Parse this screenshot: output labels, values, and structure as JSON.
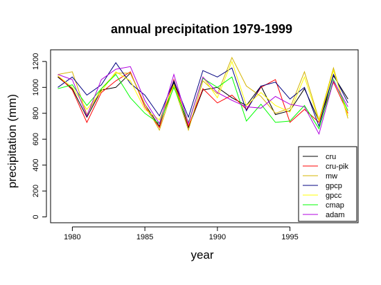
{
  "chart_data": {
    "type": "line",
    "title": "annual precipitation 1979-1999",
    "xlabel": "year",
    "ylabel": "precipitation (mm)",
    "xlim": [
      1978.5,
      1999.7
    ],
    "ylim": [
      -45,
      1290
    ],
    "x_ticks": [
      1980,
      1985,
      1990,
      1995
    ],
    "y_ticks": [
      0,
      200,
      400,
      600,
      800,
      1000,
      1200
    ],
    "grid": false,
    "legend_position": "bottom-right",
    "x": [
      1979,
      1980,
      1981,
      1982,
      1983,
      1984,
      1985,
      1986,
      1987,
      1988,
      1989,
      1990,
      1991,
      1992,
      1993,
      1994,
      1995,
      1996,
      1997,
      1998,
      1999
    ],
    "series": [
      {
        "name": "cru",
        "color": "#000000",
        "values": [
          1080,
          990,
          770,
          980,
          1000,
          1110,
          870,
          700,
          1040,
          690,
          980,
          1000,
          920,
          860,
          1010,
          790,
          820,
          990,
          740,
          1090,
          910
        ]
      },
      {
        "name": "cru-pik",
        "color": "#ff0000",
        "values": [
          1090,
          980,
          730,
          960,
          1050,
          1120,
          850,
          690,
          1060,
          700,
          990,
          880,
          940,
          830,
          1000,
          1060,
          730,
          830,
          730,
          1040,
          800
        ]
      },
      {
        "name": "mw",
        "color": "#d4b400",
        "values": [
          1100,
          1120,
          790,
          990,
          1110,
          1110,
          870,
          670,
          1010,
          670,
          1050,
          950,
          1230,
          1010,
          930,
          800,
          840,
          1120,
          750,
          1150,
          760
        ]
      },
      {
        "name": "gpcp",
        "color": "#000080",
        "values": [
          1000,
          1080,
          940,
          1020,
          1190,
          1030,
          940,
          780,
          1050,
          770,
          1130,
          1080,
          1150,
          820,
          1010,
          1040,
          910,
          1000,
          700,
          1100,
          880
        ]
      },
      {
        "name": "gpcc",
        "color": "#ffff00",
        "values": [
          1090,
          1000,
          830,
          970,
          1120,
          1050,
          830,
          750,
          1020,
          720,
          1080,
          920,
          1200,
          860,
          960,
          860,
          810,
          1080,
          740,
          1130,
          780
        ]
      },
      {
        "name": "cmap",
        "color": "#00ff00",
        "values": [
          990,
          1020,
          860,
          990,
          1100,
          920,
          800,
          720,
          1000,
          730,
          1070,
          1000,
          1080,
          740,
          870,
          730,
          740,
          860,
          680,
          1060,
          820
        ]
      },
      {
        "name": "adam",
        "color": "#b000e0",
        "values": [
          1100,
          1060,
          780,
          1060,
          1140,
          1160,
          900,
          720,
          1100,
          720,
          1080,
          960,
          900,
          850,
          840,
          930,
          870,
          850,
          640,
          1050,
          850
        ]
      }
    ]
  }
}
